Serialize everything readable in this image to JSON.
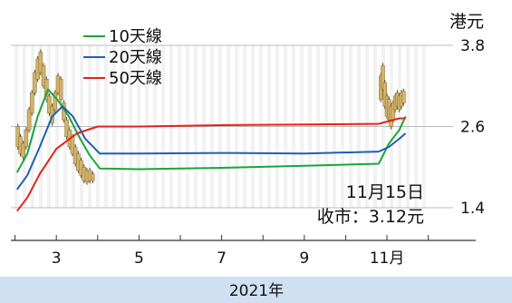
{
  "chart_data": {
    "type": "line",
    "unit_label": "港元",
    "year_label": "2021年",
    "x_tick_labels": [
      "3",
      "5",
      "7",
      "9",
      "11月"
    ],
    "x_ticks": [
      3,
      5,
      7,
      9,
      11
    ],
    "xlim": [
      1.9,
      12.6
    ],
    "ylim": [
      1.4,
      3.8
    ],
    "y_ticks": [
      3.8,
      2.6,
      1.4
    ],
    "y_tick_labels": [
      "3.8",
      "2.6",
      "1.4"
    ],
    "grid": true,
    "legend_position": "top-left",
    "annotation": {
      "line1": "11月15日",
      "line2": "收市：3.12元"
    },
    "colors": {
      "ma10": "#1aa53a",
      "ma20": "#1e5fb4",
      "ma50": "#e2231a",
      "candle": "#d2b36b",
      "axis": "#333333",
      "grid": "#bbbbbb",
      "footer_bg": "#cfe0f2"
    },
    "series": [
      {
        "name": "10天線",
        "key": "ma10",
        "points": [
          [
            2.05,
            1.92
          ],
          [
            2.3,
            2.2
          ],
          [
            2.55,
            2.75
          ],
          [
            2.8,
            3.15
          ],
          [
            3.05,
            2.98
          ],
          [
            3.3,
            2.75
          ],
          [
            3.55,
            2.45
          ],
          [
            3.8,
            2.18
          ],
          [
            4.05,
            1.98
          ],
          [
            5,
            1.97
          ],
          [
            7,
            1.99
          ],
          [
            9,
            2.02
          ],
          [
            10.8,
            2.05
          ],
          [
            11.05,
            2.35
          ],
          [
            11.3,
            2.55
          ],
          [
            11.45,
            2.75
          ]
        ]
      },
      {
        "name": "20天線",
        "key": "ma20",
        "points": [
          [
            2.05,
            1.67
          ],
          [
            2.3,
            1.88
          ],
          [
            2.6,
            2.3
          ],
          [
            2.9,
            2.75
          ],
          [
            3.15,
            2.9
          ],
          [
            3.4,
            2.75
          ],
          [
            3.7,
            2.42
          ],
          [
            4.05,
            2.2
          ],
          [
            5,
            2.2
          ],
          [
            7,
            2.21
          ],
          [
            9,
            2.2
          ],
          [
            10.8,
            2.23
          ],
          [
            11.05,
            2.3
          ],
          [
            11.3,
            2.42
          ],
          [
            11.45,
            2.5
          ]
        ]
      },
      {
        "name": "50天線",
        "key": "ma50",
        "points": [
          [
            2.05,
            1.35
          ],
          [
            2.3,
            1.55
          ],
          [
            2.6,
            1.9
          ],
          [
            3.0,
            2.27
          ],
          [
            3.5,
            2.5
          ],
          [
            4.0,
            2.6
          ],
          [
            5,
            2.6
          ],
          [
            7,
            2.62
          ],
          [
            9,
            2.63
          ],
          [
            10.8,
            2.64
          ],
          [
            11.05,
            2.68
          ],
          [
            11.3,
            2.72
          ],
          [
            11.45,
            2.72
          ]
        ]
      }
    ],
    "candles": [
      [
        2.07,
        2.6,
        2.3
      ],
      [
        2.13,
        2.45,
        2.2
      ],
      [
        2.2,
        2.35,
        2.15
      ],
      [
        2.27,
        2.55,
        2.3
      ],
      [
        2.34,
        2.85,
        2.55
      ],
      [
        2.41,
        3.1,
        2.8
      ],
      [
        2.48,
        3.4,
        3.1
      ],
      [
        2.55,
        3.6,
        3.3
      ],
      [
        2.62,
        3.7,
        3.4
      ],
      [
        2.69,
        3.5,
        3.2
      ],
      [
        2.76,
        3.3,
        3.0
      ],
      [
        2.83,
        3.05,
        2.8
      ],
      [
        2.9,
        2.9,
        2.65
      ],
      [
        2.97,
        3.1,
        2.85
      ],
      [
        3.04,
        3.35,
        3.1
      ],
      [
        3.11,
        3.3,
        3.0
      ],
      [
        3.18,
        2.95,
        2.7
      ],
      [
        3.25,
        2.7,
        2.45
      ],
      [
        3.32,
        2.55,
        2.3
      ],
      [
        3.39,
        2.45,
        2.2
      ],
      [
        3.46,
        2.3,
        2.05
      ],
      [
        3.53,
        2.2,
        1.95
      ],
      [
        3.6,
        2.1,
        1.88
      ],
      [
        3.67,
        2.0,
        1.8
      ],
      [
        3.74,
        1.95,
        1.78
      ],
      [
        3.81,
        1.95,
        1.8
      ],
      [
        3.88,
        1.9,
        1.8
      ],
      [
        10.85,
        3.35,
        3.0
      ],
      [
        10.9,
        3.5,
        3.15
      ],
      [
        10.95,
        3.25,
        2.9
      ],
      [
        11.0,
        3.05,
        2.75
      ],
      [
        11.05,
        3.0,
        2.7
      ],
      [
        11.1,
        2.9,
        2.6
      ],
      [
        11.15,
        2.95,
        2.7
      ],
      [
        11.2,
        3.05,
        2.85
      ],
      [
        11.25,
        3.1,
        2.9
      ],
      [
        11.3,
        3.05,
        2.85
      ],
      [
        11.35,
        3.1,
        2.9
      ],
      [
        11.4,
        3.12,
        2.95
      ]
    ]
  }
}
